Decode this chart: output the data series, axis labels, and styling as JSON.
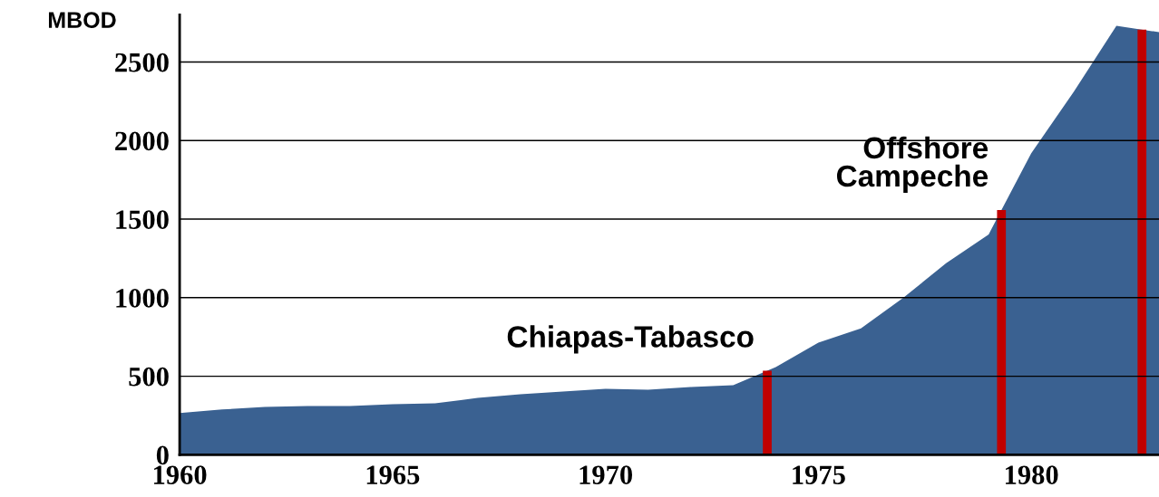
{
  "chart_data": {
    "type": "area",
    "ylabel": "MBOD",
    "x": [
      1960,
      1961,
      1962,
      1963,
      1964,
      1965,
      1966,
      1967,
      1968,
      1969,
      1970,
      1971,
      1972,
      1973,
      1974,
      1975,
      1976,
      1977,
      1978,
      1979,
      1980,
      1981,
      1982,
      1983
    ],
    "series": [
      {
        "color": "#3a6191",
        "values": [
          265,
          288,
          305,
          310,
          310,
          322,
          328,
          362,
          385,
          403,
          420,
          414,
          431,
          443,
          558,
          713,
          805,
          1000,
          1219,
          1403,
          1920,
          2311,
          2730,
          2690
        ]
      }
    ],
    "xlim": [
      1960,
      1983
    ],
    "xticks": [
      1960,
      1965,
      1970,
      1975,
      1980
    ],
    "ylim": [
      0,
      2800
    ],
    "yticks": [
      0,
      500,
      1000,
      1500,
      2000,
      2500
    ],
    "grid": "y",
    "legend": false,
    "ref_lines": [
      {
        "axis": "x",
        "value": 1973.8,
        "label": "Chiapas-Tabasco",
        "color": "#c00000"
      },
      {
        "axis": "x",
        "value": 1979.3,
        "label": "Offshore\nCampeche",
        "color": "#c00000"
      },
      {
        "axis": "x",
        "value": 1982.6,
        "color": "#c00000"
      }
    ]
  }
}
